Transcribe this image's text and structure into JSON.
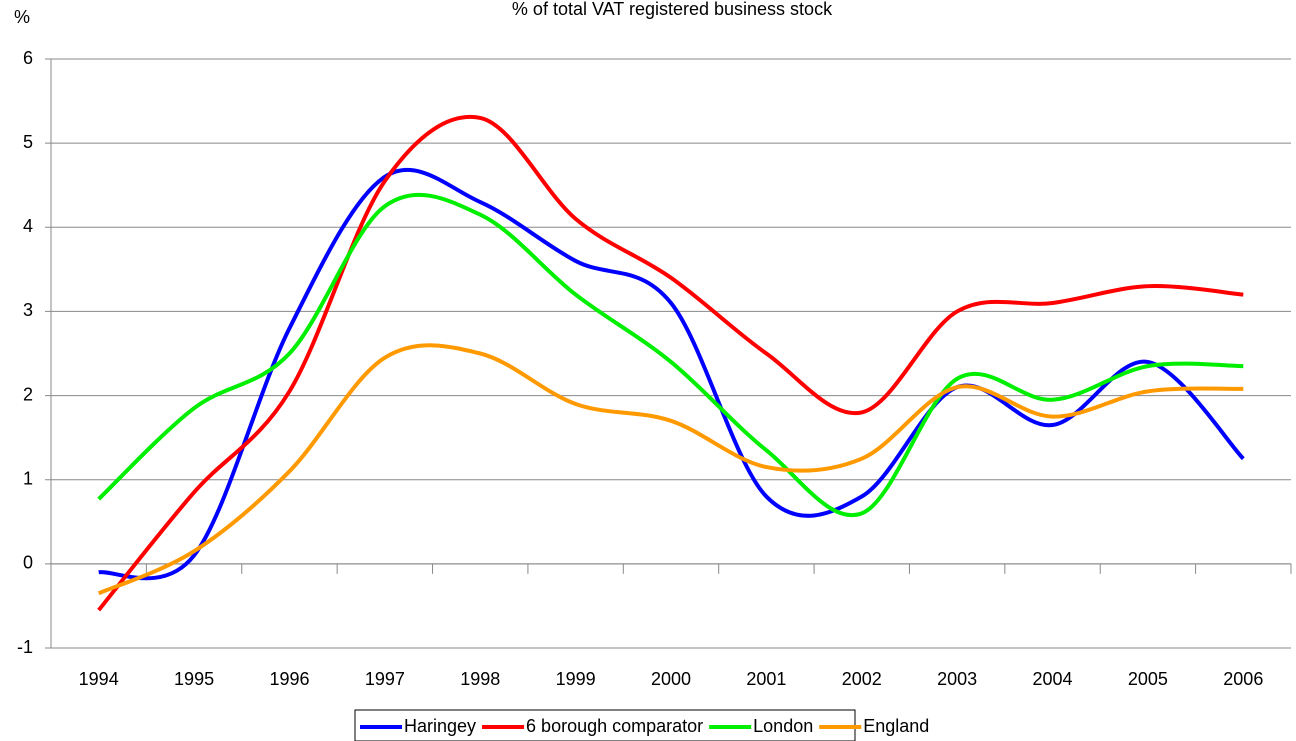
{
  "chart_data": {
    "type": "line",
    "title": "% of total VAT registered business stock",
    "y_label": "%",
    "categories": [
      "1994",
      "1995",
      "1996",
      "1997",
      "1998",
      "1999",
      "2000",
      "2001",
      "2002",
      "2003",
      "2004",
      "2005",
      "2006"
    ],
    "series": [
      {
        "name": "Haringey",
        "color": "#0000ff",
        "values": [
          -0.1,
          0.1,
          2.8,
          4.6,
          4.3,
          3.6,
          3.1,
          0.8,
          0.8,
          2.1,
          1.65,
          2.4,
          1.25
        ]
      },
      {
        "name": "6 borough comparator",
        "color": "#ff0000",
        "values": [
          -0.55,
          0.85,
          2.05,
          4.55,
          5.3,
          4.1,
          3.4,
          2.5,
          1.8,
          3.0,
          3.1,
          3.3,
          3.2
        ]
      },
      {
        "name": "London",
        "color": "#00ee00",
        "values": [
          0.77,
          1.85,
          2.5,
          4.25,
          4.15,
          3.2,
          2.4,
          1.35,
          0.6,
          2.2,
          1.95,
          2.35,
          2.35
        ]
      },
      {
        "name": "England",
        "color": "#ff9900",
        "values": [
          -0.35,
          0.15,
          1.1,
          2.45,
          2.5,
          1.9,
          1.7,
          1.15,
          1.25,
          2.1,
          1.75,
          2.05,
          2.08
        ]
      }
    ],
    "ylim": [
      -1,
      6
    ],
    "yticks": [
      -1,
      0,
      1,
      2,
      3,
      4,
      5,
      6
    ],
    "grid": true,
    "legend": "bottom"
  }
}
